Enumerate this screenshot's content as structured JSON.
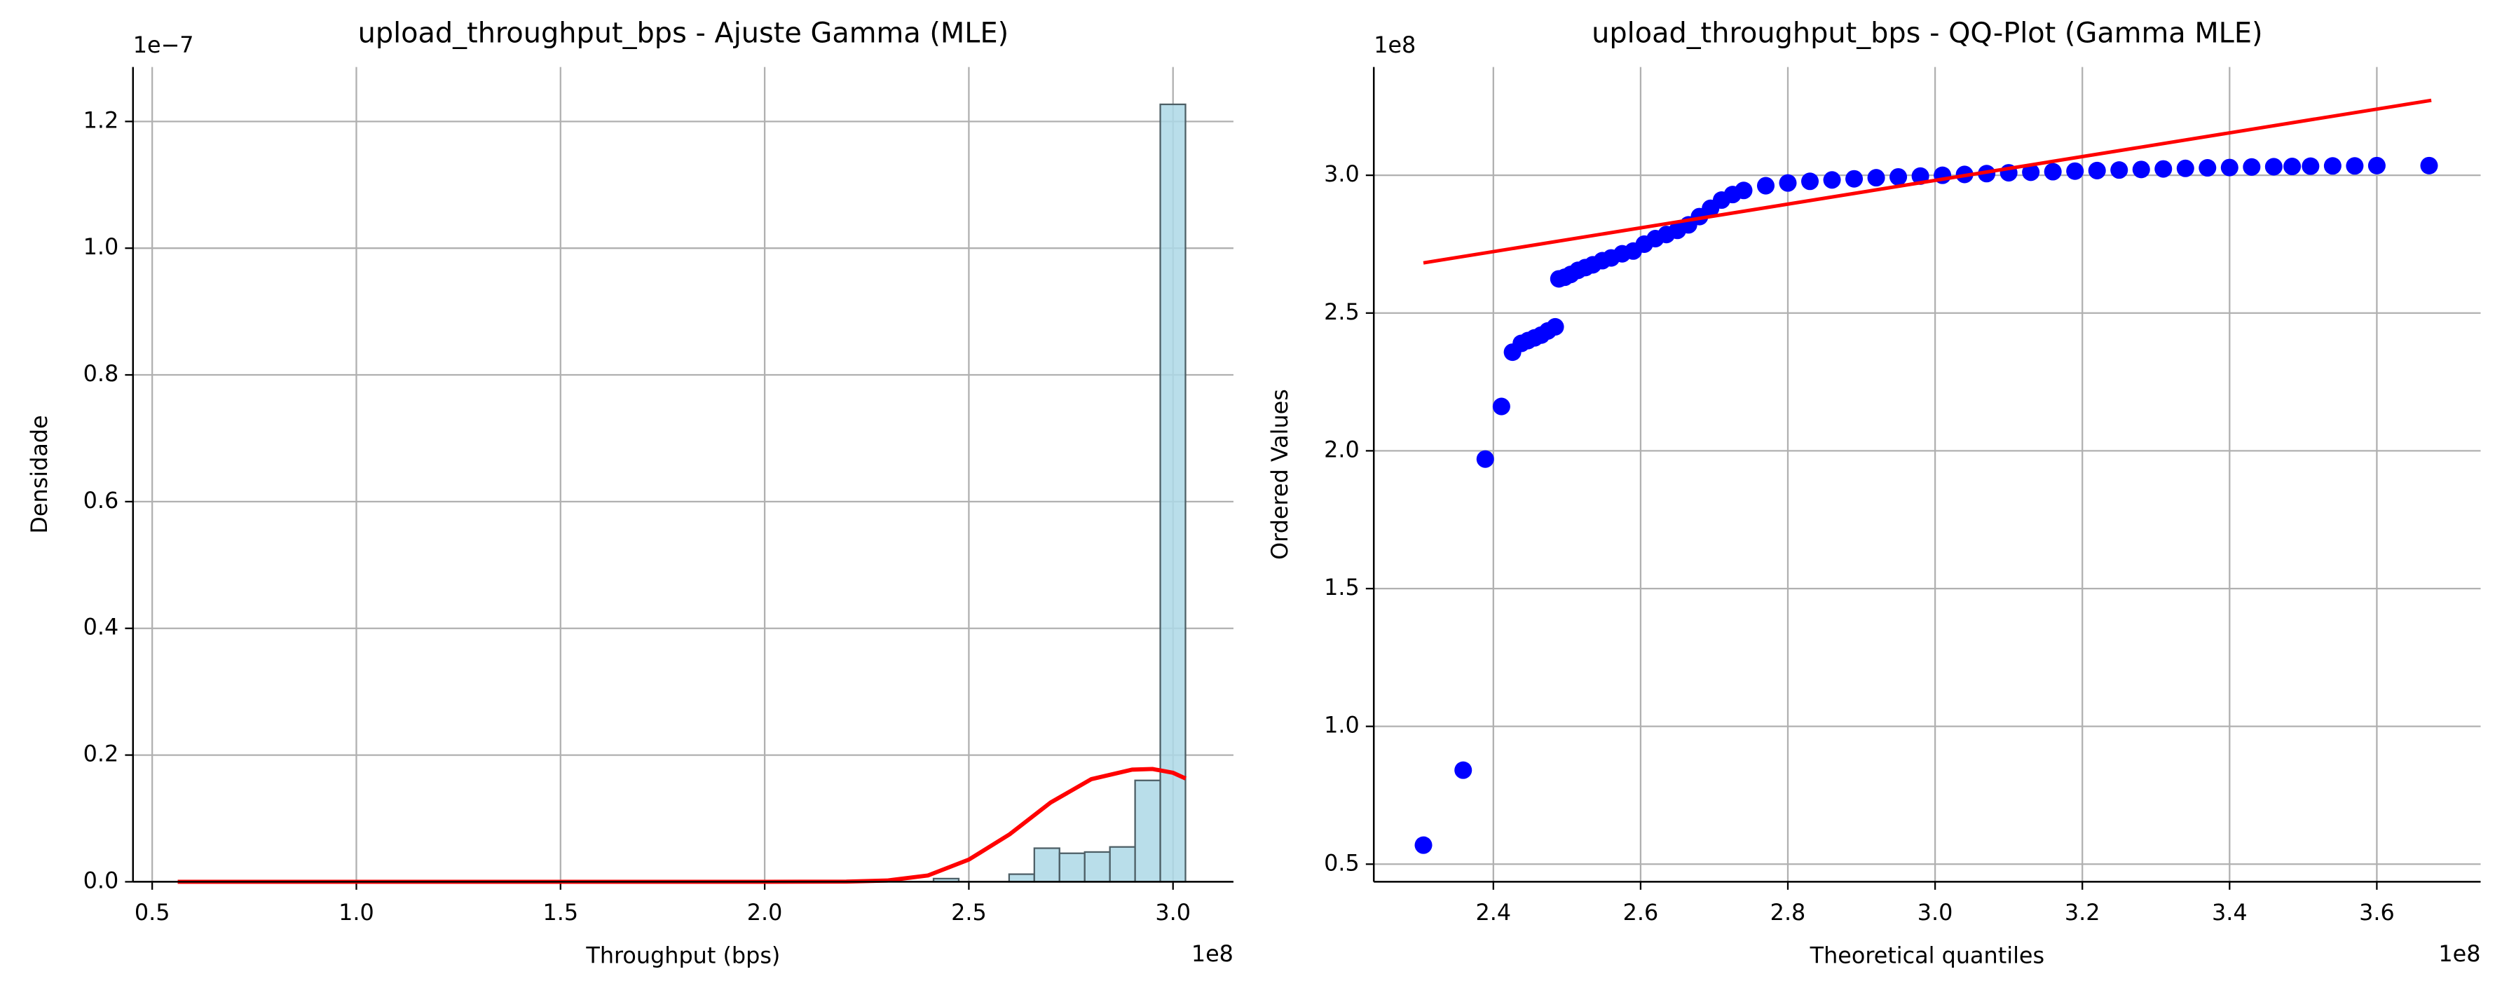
{
  "chart_data": [
    {
      "type": "histogram",
      "title": "upload_throughput_bps - Ajuste Gamma (MLE)",
      "x_label": "Throughput (bps)",
      "y_label": "Densidade",
      "x_offset_label": "1e8",
      "y_offset_label": "1e−7",
      "bins": [
        0.5625,
        0.6242,
        0.6859,
        0.7476,
        0.8093,
        0.871,
        0.9327,
        0.9944,
        1.0561,
        1.1178,
        1.1795,
        1.2412,
        1.3029,
        1.3646,
        1.4263,
        1.488,
        1.5497,
        1.6114,
        1.6731,
        1.7348,
        1.7965,
        1.8582,
        1.9199,
        1.9816,
        2.0433,
        2.105,
        2.1667,
        2.2284,
        2.2901,
        2.3518,
        2.4135,
        2.4752,
        2.5369,
        2.5986,
        2.6603,
        2.722,
        2.7837,
        2.8454,
        2.9071,
        2.9688,
        3.0305
      ],
      "values": [
        0,
        0,
        0,
        0,
        0,
        0,
        0,
        0,
        0,
        0,
        0,
        0,
        0,
        0,
        0,
        0,
        0,
        0,
        0,
        0,
        0,
        0,
        0,
        0,
        0,
        0,
        0,
        0,
        0,
        0,
        0.005,
        0,
        0,
        0.012,
        0.053,
        0.045,
        0.047,
        0.055,
        0.16,
        1.227
      ],
      "color": "#add8e6",
      "edge_color": "#4d5f66",
      "fit": {
        "x": [
          0.5625,
          1.0,
          1.5,
          2.0,
          2.2,
          2.3,
          2.4,
          2.5,
          2.6,
          2.7,
          2.8,
          2.9,
          2.95,
          3.0,
          3.031
        ],
        "values": [
          0,
          0,
          0,
          0,
          0.0003,
          0.002,
          0.01,
          0.035,
          0.075,
          0.125,
          0.162,
          0.177,
          0.178,
          0.172,
          0.163
        ],
        "color": "#ff0000"
      },
      "xlim": [
        0.453,
        3.148
      ],
      "ylim": [
        0,
        1.286
      ],
      "xticks": [
        0.5,
        {
          "value": 1,
          "label": "1.0"
        },
        1.5,
        {
          "value": 2,
          "label": "2.0"
        },
        2.5,
        {
          "value": 3,
          "label": "3.0"
        }
      ],
      "yticks": [
        {
          "value": 0,
          "label": "0.0"
        },
        0.2,
        0.4,
        0.6,
        0.8,
        {
          "value": 1,
          "label": "1.0"
        },
        1.2
      ],
      "grid": true
    },
    {
      "type": "scatter",
      "title": "upload_throughput_bps - QQ-Plot (Gamma MLE)",
      "x_label": "Theoretical quantiles",
      "y_label": "Ordered Values",
      "x_offset_label": "1e8",
      "y_offset_label": "1e8",
      "x": [
        2.305,
        2.359,
        2.389,
        2.411,
        2.426,
        2.438,
        2.447,
        2.456,
        2.465,
        2.474,
        2.484,
        2.489,
        2.497,
        2.505,
        2.515,
        2.525,
        2.535,
        2.548,
        2.56,
        2.575,
        2.59,
        2.605,
        2.62,
        2.635,
        2.65,
        2.665,
        2.68,
        2.695,
        2.71,
        2.725,
        2.74,
        2.77,
        2.8,
        2.83,
        2.86,
        2.89,
        2.92,
        2.95,
        2.98,
        3.01,
        3.04,
        3.07,
        3.1,
        3.13,
        3.16,
        3.19,
        3.22,
        3.25,
        3.28,
        3.31,
        3.34,
        3.37,
        3.4,
        3.43,
        3.46,
        3.485,
        3.51,
        3.54,
        3.57,
        3.6,
        3.671
      ],
      "values": [
        0.569,
        0.841,
        1.97,
        2.161,
        2.358,
        2.39,
        2.4,
        2.41,
        2.42,
        2.435,
        2.45,
        2.624,
        2.63,
        2.64,
        2.655,
        2.665,
        2.675,
        2.69,
        2.7,
        2.715,
        2.725,
        2.75,
        2.77,
        2.785,
        2.8,
        2.82,
        2.85,
        2.88,
        2.91,
        2.93,
        2.945,
        2.962,
        2.972,
        2.978,
        2.983,
        2.987,
        2.991,
        2.994,
        2.997,
        3.0,
        3.003,
        3.006,
        3.009,
        3.011,
        3.013,
        3.015,
        3.017,
        3.019,
        3.021,
        3.023,
        3.025,
        3.027,
        3.028,
        3.03,
        3.031,
        3.032,
        3.033,
        3.034,
        3.034,
        3.035,
        3.035
      ],
      "color": "#0000ff",
      "fit": {
        "x": [
          2.305,
          3.674
        ],
        "values": [
          2.682,
          3.272
        ],
        "color": "#ff0000"
      },
      "xlim": [
        2.2376,
        3.741
      ],
      "ylim": [
        0.436,
        3.393
      ],
      "xticks": [
        2.4,
        2.6,
        2.8,
        {
          "value": 3,
          "label": "3.0"
        },
        3.2,
        3.4,
        3.6
      ],
      "yticks": [
        0.5,
        {
          "value": 1,
          "label": "1.0"
        },
        1.5,
        {
          "value": 2,
          "label": "2.0"
        },
        2.5,
        {
          "value": 3,
          "label": "3.0"
        }
      ],
      "grid": true
    }
  ]
}
